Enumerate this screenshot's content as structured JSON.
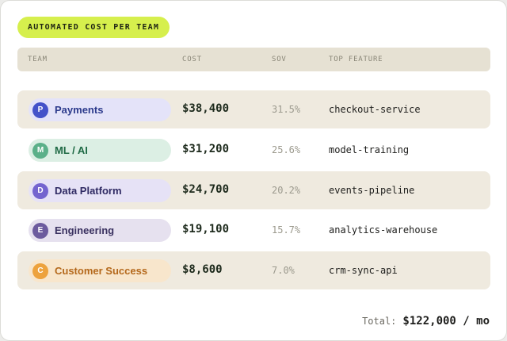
{
  "title": "AUTOMATED COST PER TEAM",
  "columns": {
    "team": "TEAM",
    "cost": "COST",
    "sov": "SOV",
    "feature": "TOP FEATURE"
  },
  "rows": [
    {
      "initial": "P",
      "team": "Payments",
      "cost": "$38,400",
      "sov": "31.5%",
      "feature": "checkout-service",
      "avatar_color": "#4452c9",
      "pill_bg": "#e4e3f9",
      "name_color": "#2c3a8c",
      "shaded": true
    },
    {
      "initial": "M",
      "team": "ML / AI",
      "cost": "$31,200",
      "sov": "25.6%",
      "feature": "model-training",
      "avatar_color": "#5bb089",
      "pill_bg": "#dcefe4",
      "name_color": "#1f6a45",
      "shaded": false
    },
    {
      "initial": "D",
      "team": "Data Platform",
      "cost": "$24,700",
      "sov": "20.2%",
      "feature": "events-pipeline",
      "avatar_color": "#7464cf",
      "pill_bg": "#e6e2f6",
      "name_color": "#2f2a63",
      "shaded": true
    },
    {
      "initial": "E",
      "team": "Engineering",
      "cost": "$19,100",
      "sov": "15.7%",
      "feature": "analytics-warehouse",
      "avatar_color": "#6c5b9e",
      "pill_bg": "#e6e1ef",
      "name_color": "#3a3160",
      "shaded": false
    },
    {
      "initial": "C",
      "team": "Customer Success",
      "cost": "$8,600",
      "sov": "7.0%",
      "feature": "crm-sync-api",
      "avatar_color": "#eda23d",
      "pill_bg": "#f8e6cc",
      "name_color": "#b4681b",
      "shaded": true
    }
  ],
  "total": {
    "label": "Total:",
    "value": "$122,000 / mo"
  },
  "colors": {
    "accent_pill": "#d6ef4d",
    "header_bg": "#e6e1d3",
    "row_shaded": "#efeadf"
  }
}
